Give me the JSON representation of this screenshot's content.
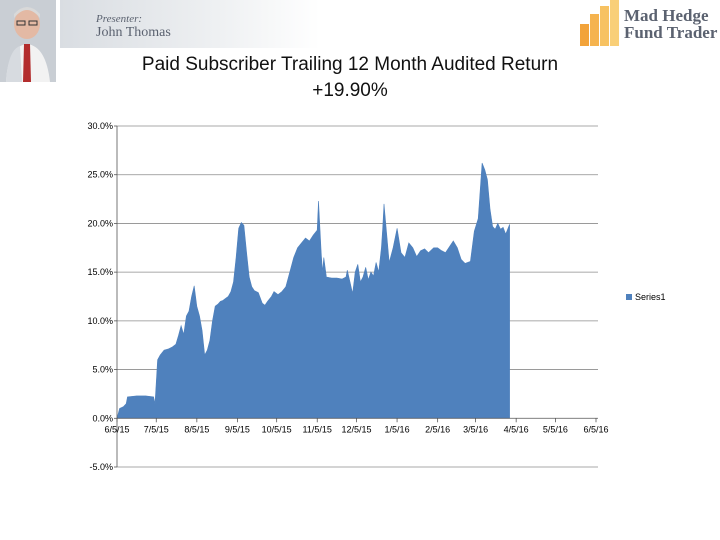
{
  "header": {
    "presenter_role": "Presenter:",
    "presenter_name": "John Thomas",
    "logo_line1": "Mad Hedge",
    "logo_line2": "Fund Trader",
    "logo_icon": "bar-steps-icon",
    "avatar_icon": "presenter-photo"
  },
  "chart_data": {
    "type": "area",
    "title": "Paid Subscriber Trailing 12 Month Audited Return",
    "subtitle": "+19.90%",
    "series_color": "#4f81bd",
    "ylim": [
      -5,
      30
    ],
    "y_ticks": [
      "30.0%",
      "25.0%",
      "20.0%",
      "15.0%",
      "10.0%",
      "5.0%",
      "0.0%",
      "-5.0%"
    ],
    "y_tick_values": [
      30,
      25,
      20,
      15,
      10,
      5,
      0,
      -5
    ],
    "x_ticks": [
      "6/5/15",
      "7/5/15",
      "8/5/15",
      "9/5/15",
      "10/5/15",
      "11/5/15",
      "12/5/15",
      "1/5/16",
      "2/5/16",
      "3/5/16",
      "4/5/16",
      "5/5/16",
      "6/5/16"
    ],
    "x_tick_dates": [
      "2015-06-05",
      "2015-07-05",
      "2015-08-05",
      "2015-09-05",
      "2015-10-05",
      "2015-11-05",
      "2015-12-05",
      "2016-01-05",
      "2016-02-05",
      "2016-03-05",
      "2016-04-05",
      "2016-05-05",
      "2016-06-05"
    ],
    "grid": true,
    "legend": "right",
    "series": [
      {
        "name": "Series1",
        "points": [
          [
            "2015-06-05",
            0.0
          ],
          [
            "2015-06-07",
            1.0
          ],
          [
            "2015-06-10",
            1.2
          ],
          [
            "2015-06-12",
            1.5
          ],
          [
            "2015-06-13",
            2.2
          ],
          [
            "2015-06-20",
            2.3
          ],
          [
            "2015-06-27",
            2.3
          ],
          [
            "2015-07-03",
            2.2
          ],
          [
            "2015-07-04",
            1.5
          ],
          [
            "2015-07-06",
            6.0
          ],
          [
            "2015-07-08",
            6.5
          ],
          [
            "2015-07-11",
            7.0
          ],
          [
            "2015-07-14",
            7.1
          ],
          [
            "2015-07-17",
            7.3
          ],
          [
            "2015-07-20",
            7.6
          ],
          [
            "2015-07-22",
            8.5
          ],
          [
            "2015-07-24",
            9.5
          ],
          [
            "2015-07-26",
            8.6
          ],
          [
            "2015-07-28",
            10.5
          ],
          [
            "2015-07-30",
            11.0
          ],
          [
            "2015-08-01",
            12.5
          ],
          [
            "2015-08-03",
            13.6
          ],
          [
            "2015-08-05",
            11.5
          ],
          [
            "2015-08-07",
            10.5
          ],
          [
            "2015-08-09",
            9.0
          ],
          [
            "2015-08-11",
            6.5
          ],
          [
            "2015-08-13",
            7.0
          ],
          [
            "2015-08-15",
            8.0
          ],
          [
            "2015-08-17",
            10.0
          ],
          [
            "2015-08-19",
            11.5
          ],
          [
            "2015-08-21",
            11.7
          ],
          [
            "2015-08-23",
            12.0
          ],
          [
            "2015-08-25",
            12.1
          ],
          [
            "2015-08-27",
            12.3
          ],
          [
            "2015-08-29",
            12.5
          ],
          [
            "2015-08-31",
            13.0
          ],
          [
            "2015-09-02",
            14.0
          ],
          [
            "2015-09-04",
            16.5
          ],
          [
            "2015-09-06",
            19.5
          ],
          [
            "2015-09-08",
            20.1
          ],
          [
            "2015-09-10",
            19.8
          ],
          [
            "2015-09-12",
            17.0
          ],
          [
            "2015-09-14",
            14.5
          ],
          [
            "2015-09-16",
            13.5
          ],
          [
            "2015-09-18",
            13.1
          ],
          [
            "2015-09-21",
            12.9
          ],
          [
            "2015-09-24",
            11.8
          ],
          [
            "2015-09-26",
            11.6
          ],
          [
            "2015-09-28",
            12.0
          ],
          [
            "2015-10-01",
            12.5
          ],
          [
            "2015-10-03",
            13.0
          ],
          [
            "2015-10-06",
            12.7
          ],
          [
            "2015-10-09",
            13.0
          ],
          [
            "2015-10-12",
            13.5
          ],
          [
            "2015-10-15",
            15.0
          ],
          [
            "2015-10-18",
            16.5
          ],
          [
            "2015-10-21",
            17.5
          ],
          [
            "2015-10-24",
            18.0
          ],
          [
            "2015-10-27",
            18.5
          ],
          [
            "2015-10-30",
            18.2
          ],
          [
            "2015-11-02",
            18.8
          ],
          [
            "2015-11-05",
            19.3
          ],
          [
            "2015-11-06",
            22.3
          ],
          [
            "2015-11-08",
            17.0
          ],
          [
            "2015-11-09",
            15.0
          ],
          [
            "2015-11-10",
            16.5
          ],
          [
            "2015-11-12",
            14.5
          ],
          [
            "2015-11-16",
            14.4
          ],
          [
            "2015-11-20",
            14.4
          ],
          [
            "2015-11-24",
            14.3
          ],
          [
            "2015-11-27",
            14.5
          ],
          [
            "2015-11-28",
            15.2
          ],
          [
            "2015-11-30",
            14.0
          ],
          [
            "2015-12-02",
            12.8
          ],
          [
            "2015-12-04",
            15.0
          ],
          [
            "2015-12-06",
            15.8
          ],
          [
            "2015-12-08",
            14.0
          ],
          [
            "2015-12-10",
            14.5
          ],
          [
            "2015-12-12",
            15.5
          ],
          [
            "2015-12-14",
            14.2
          ],
          [
            "2015-12-16",
            15.0
          ],
          [
            "2015-12-18",
            14.6
          ],
          [
            "2015-12-20",
            16.0
          ],
          [
            "2015-12-22",
            15.0
          ],
          [
            "2015-12-24",
            17.5
          ],
          [
            "2015-12-25",
            19.5
          ],
          [
            "2015-12-26",
            22.0
          ],
          [
            "2015-12-28",
            19.0
          ],
          [
            "2015-12-30",
            16.0
          ],
          [
            "2016-01-02",
            17.5
          ],
          [
            "2016-01-05",
            19.5
          ],
          [
            "2016-01-08",
            17.0
          ],
          [
            "2016-01-11",
            16.5
          ],
          [
            "2016-01-14",
            18.0
          ],
          [
            "2016-01-17",
            17.5
          ],
          [
            "2016-01-20",
            16.6
          ],
          [
            "2016-01-23",
            17.2
          ],
          [
            "2016-01-26",
            17.4
          ],
          [
            "2016-01-29",
            17.0
          ],
          [
            "2016-02-02",
            17.5
          ],
          [
            "2016-02-05",
            17.5
          ],
          [
            "2016-02-08",
            17.2
          ],
          [
            "2016-02-11",
            17.0
          ],
          [
            "2016-02-14",
            17.6
          ],
          [
            "2016-02-17",
            18.2
          ],
          [
            "2016-02-20",
            17.5
          ],
          [
            "2016-02-23",
            16.3
          ],
          [
            "2016-02-26",
            15.9
          ],
          [
            "2016-03-01",
            16.1
          ],
          [
            "2016-03-04",
            19.2
          ],
          [
            "2016-03-07",
            20.5
          ],
          [
            "2016-03-10",
            26.2
          ],
          [
            "2016-03-12",
            25.5
          ],
          [
            "2016-03-14",
            24.5
          ],
          [
            "2016-03-16",
            21.5
          ],
          [
            "2016-03-18",
            19.7
          ],
          [
            "2016-03-20",
            19.4
          ],
          [
            "2016-03-22",
            20.0
          ],
          [
            "2016-03-24",
            19.4
          ],
          [
            "2016-03-26",
            19.6
          ],
          [
            "2016-03-28",
            18.9
          ],
          [
            "2016-03-31",
            19.9
          ]
        ]
      }
    ]
  }
}
